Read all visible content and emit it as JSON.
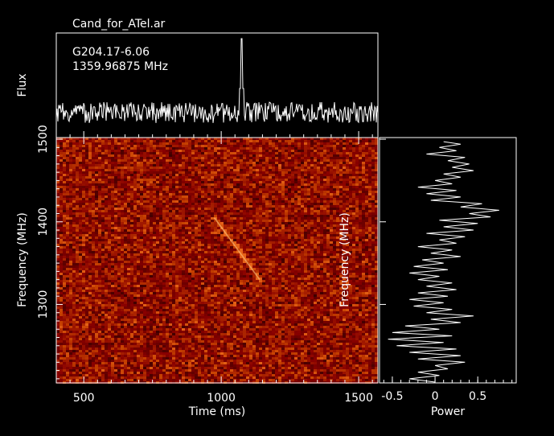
{
  "title": "Cand_for_ATel.ar",
  "profile": {
    "source_label": "G204.17-6.06",
    "frequency_label": "1359.96875 MHz",
    "ylabel": "Flux"
  },
  "dynamic_spectrum": {
    "xlabel": "Time (ms)",
    "ylabel": "Frequency (MHz)",
    "x_ticks": [
      "500",
      "1000",
      "1500"
    ],
    "y_ticks": [
      "1300",
      "1400",
      "1500"
    ]
  },
  "spectrum": {
    "xlabel": "Power",
    "ylabel": "Frequency (MHz)",
    "x_ticks": [
      "-0.5",
      "0",
      "0.5"
    ]
  },
  "colors": {
    "background": "#000000",
    "foreground": "#ffffff",
    "heatmap_base": "#8b1a00"
  },
  "chart_data": [
    {
      "type": "line",
      "panel": "pulse profile",
      "title": "Cand_for_ATel.ar",
      "ylabel": "Flux",
      "xlim": [
        400,
        1570
      ],
      "peak": {
        "x": 1073,
        "note": "narrow pulse"
      },
      "noise_baseline": "flat with random noise"
    },
    {
      "type": "heatmap",
      "panel": "dynamic spectrum",
      "xlabel": "Time (ms)",
      "ylabel": "Frequency (MHz)",
      "xlim": [
        400,
        1570
      ],
      "ylim": [
        1205,
        1502
      ],
      "x_ticks": [
        500,
        1000,
        1500
      ],
      "y_ticks": [
        1300,
        1400,
        1500
      ],
      "dispersed_sweep": {
        "start": {
          "time_ms": 975,
          "freq_mhz": 1405
        },
        "end": {
          "time_ms": 1140,
          "freq_mhz": 1330
        }
      }
    },
    {
      "type": "line",
      "panel": "spectrum",
      "xlabel": "Power",
      "xlim": [
        -0.65,
        0.95
      ],
      "ylim": [
        1205,
        1502
      ],
      "x_ticks": [
        -0.5,
        0,
        0.5
      ],
      "power_by_frequency": [
        [
          1497,
          0.1
        ],
        [
          1494,
          0.3
        ],
        [
          1490,
          0.05
        ],
        [
          1486,
          0.25
        ],
        [
          1482,
          -0.1
        ],
        [
          1478,
          0.35
        ],
        [
          1474,
          0.15
        ],
        [
          1470,
          0.4
        ],
        [
          1466,
          0.2
        ],
        [
          1462,
          0.45
        ],
        [
          1458,
          0.1
        ],
        [
          1454,
          0.3
        ],
        [
          1450,
          0.0
        ],
        [
          1446,
          0.2
        ],
        [
          1442,
          -0.2
        ],
        [
          1438,
          0.25
        ],
        [
          1434,
          -0.1
        ],
        [
          1430,
          0.3
        ],
        [
          1426,
          -0.05
        ],
        [
          1422,
          0.55
        ],
        [
          1418,
          0.3
        ],
        [
          1414,
          0.75
        ],
        [
          1410,
          0.4
        ],
        [
          1406,
          0.65
        ],
        [
          1402,
          0.05
        ],
        [
          1398,
          0.5
        ],
        [
          1394,
          0.1
        ],
        [
          1390,
          0.45
        ],
        [
          1386,
          -0.1
        ],
        [
          1382,
          0.35
        ],
        [
          1378,
          0.05
        ],
        [
          1374,
          0.25
        ],
        [
          1370,
          -0.2
        ],
        [
          1366,
          0.2
        ],
        [
          1362,
          -0.05
        ],
        [
          1358,
          0.3
        ],
        [
          1354,
          -0.15
        ],
        [
          1350,
          0.1
        ],
        [
          1346,
          -0.25
        ],
        [
          1342,
          0.15
        ],
        [
          1338,
          -0.3
        ],
        [
          1334,
          0.05
        ],
        [
          1330,
          -0.2
        ],
        [
          1326,
          0.2
        ],
        [
          1322,
          -0.1
        ],
        [
          1318,
          0.25
        ],
        [
          1314,
          -0.2
        ],
        [
          1310,
          0.15
        ],
        [
          1306,
          -0.3
        ],
        [
          1302,
          0.1
        ],
        [
          1298,
          -0.25
        ],
        [
          1294,
          0.2
        ],
        [
          1290,
          -0.1
        ],
        [
          1286,
          0.45
        ],
        [
          1282,
          -0.05
        ],
        [
          1278,
          0.3
        ],
        [
          1274,
          -0.35
        ],
        [
          1270,
          0.05
        ],
        [
          1266,
          -0.5
        ],
        [
          1262,
          0.2
        ],
        [
          1258,
          -0.55
        ],
        [
          1254,
          0.1
        ],
        [
          1250,
          -0.45
        ],
        [
          1246,
          0.25
        ],
        [
          1242,
          -0.3
        ],
        [
          1238,
          0.3
        ],
        [
          1234,
          -0.2
        ],
        [
          1230,
          0.35
        ],
        [
          1226,
          0.0
        ],
        [
          1222,
          0.15
        ],
        [
          1218,
          -0.2
        ],
        [
          1214,
          0.05
        ],
        [
          1210,
          -0.3
        ],
        [
          1206,
          0.0
        ]
      ]
    }
  ]
}
